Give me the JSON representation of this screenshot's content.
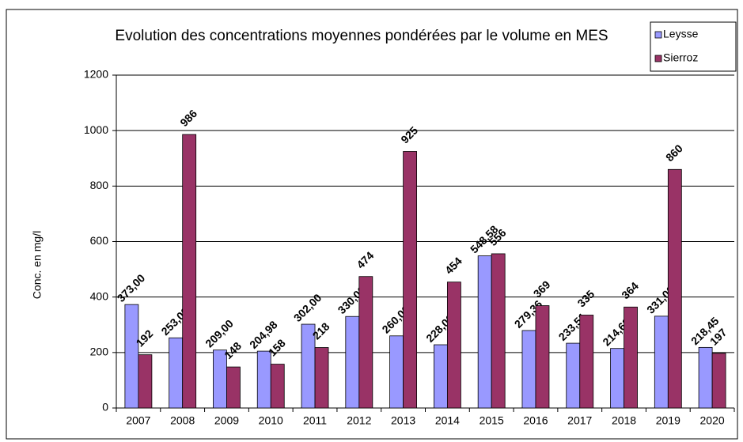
{
  "chart_data": {
    "type": "bar",
    "title": "Evolution des concentrations moyennes pondérées par le volume en MES",
    "y_label": "Conc. en mg/l",
    "categories": [
      "2007",
      "2008",
      "2009",
      "2010",
      "2011",
      "2012",
      "2013",
      "2014",
      "2015",
      "2016",
      "2017",
      "2018",
      "2019",
      "2020"
    ],
    "series": [
      {
        "name": "Leysse",
        "color": "#9999ff",
        "values": [
          373,
          253,
          209,
          204.98,
          302,
          330,
          260,
          228,
          548.58,
          279.36,
          233.51,
          214.68,
          331,
          218.45
        ],
        "value_labels": [
          "373,00",
          "253,00",
          "209,00",
          "204,98",
          "302,00",
          "330,00",
          "260,00",
          "228,00",
          "548,58",
          "279,36",
          "233,51",
          "214,68",
          "331,00",
          "218,45"
        ]
      },
      {
        "name": "Sierroz",
        "color": "#993366",
        "values": [
          192,
          986,
          148,
          158,
          218,
          474,
          925,
          454,
          556,
          369,
          335,
          364,
          860,
          197
        ]
      }
    ],
    "ylim": [
      0,
      1200
    ],
    "yticks": [
      0,
      200,
      400,
      600,
      800,
      1000,
      1200
    ],
    "grid": true,
    "legend": "top-right"
  }
}
